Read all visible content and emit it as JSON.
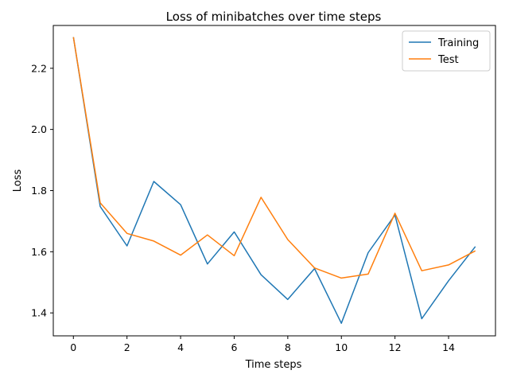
{
  "chart_data": {
    "type": "line",
    "title": "Loss of minibatches over time steps",
    "xlabel": "Time steps",
    "ylabel": "Loss",
    "x": [
      0,
      1,
      2,
      3,
      4,
      5,
      6,
      7,
      8,
      9,
      10,
      11,
      12,
      13,
      14,
      15
    ],
    "xlim": [
      -0.75,
      15.75
    ],
    "ylim": [
      1.325,
      2.34
    ],
    "xticks": [
      "0",
      "2",
      "4",
      "6",
      "8",
      "10",
      "12",
      "14"
    ],
    "yticks": [
      "1.4",
      "1.6",
      "1.8",
      "2.0",
      "2.2"
    ],
    "grid": false,
    "legend_position": "top-right",
    "series": [
      {
        "name": "Training",
        "color": "#1f77b4",
        "values": [
          2.302,
          1.748,
          1.619,
          1.83,
          1.754,
          1.56,
          1.665,
          1.525,
          1.444,
          1.545,
          1.366,
          1.597,
          1.72,
          1.381,
          1.505,
          1.617
        ]
      },
      {
        "name": "Test",
        "color": "#ff7f0e",
        "values": [
          2.302,
          1.76,
          1.66,
          1.635,
          1.589,
          1.655,
          1.587,
          1.778,
          1.64,
          1.547,
          1.514,
          1.527,
          1.726,
          1.538,
          1.557,
          1.603
        ]
      }
    ]
  }
}
